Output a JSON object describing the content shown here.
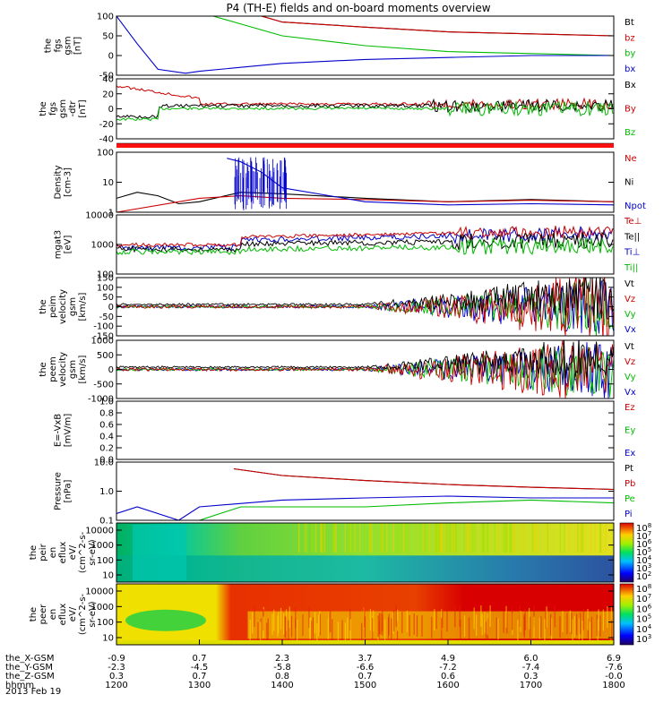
{
  "title": "P4 (TH-E) fields and on-board moments overview",
  "date": "2013 Feb 19",
  "panels": [
    {
      "id": "fgs_gsm",
      "ylabel": [
        "the",
        "fgs",
        "gsm",
        "[nT]"
      ],
      "yticks": [
        "100",
        "50",
        "0",
        "-50"
      ],
      "legend": [
        {
          "t": "Bt",
          "c": "#000000"
        },
        {
          "t": "bz",
          "c": "#cc0000"
        },
        {
          "t": "by",
          "c": "#00bb00"
        },
        {
          "t": "bx",
          "c": "#0000cc"
        }
      ]
    },
    {
      "id": "fgs_gsm_detrend",
      "ylabel": [
        "the",
        "fgs",
        "gsm",
        "-dtr",
        "[nT]"
      ],
      "yticks": [
        "40",
        "20",
        "0",
        "-20",
        "-40"
      ],
      "legend": [
        {
          "t": "Bx",
          "c": "#000000"
        },
        {
          "t": "By",
          "c": "#cc0000"
        },
        {
          "t": "Bz",
          "c": "#00bb00"
        }
      ]
    },
    {
      "id": "density",
      "ylabel": [
        "Density",
        "[cm-3]"
      ],
      "yticks": [
        "100",
        "10",
        "1"
      ],
      "legend": [
        {
          "t": "Ne",
          "c": "#cc0000"
        },
        {
          "t": "Ni",
          "c": "#000000"
        },
        {
          "t": "Npot",
          "c": "#0000cc"
        }
      ]
    },
    {
      "id": "temperature",
      "ylabel": [
        "mgat3",
        "[eV]"
      ],
      "yticks": [
        "10000",
        "1000",
        "100"
      ],
      "legend": [
        {
          "t": "Te⊥",
          "c": "#cc0000"
        },
        {
          "t": "Te||",
          "c": "#000000"
        },
        {
          "t": "Ti⊥",
          "c": "#0000cc"
        },
        {
          "t": "Ti||",
          "c": "#00bb00"
        }
      ]
    },
    {
      "id": "peim_velocity",
      "ylabel": [
        "the",
        "peim",
        "velocity",
        "gsm",
        "[km/s]"
      ],
      "yticks": [
        "150",
        "100",
        "50",
        "0",
        "-50",
        "-100",
        "-150"
      ],
      "legend": [
        {
          "t": "Vt",
          "c": "#000000"
        },
        {
          "t": "Vz",
          "c": "#cc0000"
        },
        {
          "t": "Vy",
          "c": "#00bb00"
        },
        {
          "t": "Vx",
          "c": "#0000cc"
        }
      ]
    },
    {
      "id": "peem_velocity",
      "ylabel": [
        "the",
        "peem",
        "velocity",
        "gsm",
        "[km/s]"
      ],
      "yticks": [
        "1000",
        "500",
        "0",
        "-500",
        "-1000"
      ],
      "legend": [
        {
          "t": "Vt",
          "c": "#000000"
        },
        {
          "t": "Vz",
          "c": "#cc0000"
        },
        {
          "t": "Vy",
          "c": "#00bb00"
        },
        {
          "t": "Vx",
          "c": "#0000cc"
        }
      ]
    },
    {
      "id": "efield",
      "ylabel": [
        "E=-VxB",
        "[mV/m]"
      ],
      "yticks": [
        "1.0",
        "0.8",
        "0.6",
        "0.4",
        "0.2",
        "0.0"
      ],
      "legend": [
        {
          "t": "Ez",
          "c": "#cc0000"
        },
        {
          "t": "Ey",
          "c": "#00bb00"
        },
        {
          "t": "Ex",
          "c": "#0000cc"
        }
      ]
    },
    {
      "id": "pressure",
      "ylabel": [
        "Pressure",
        "[nPa]"
      ],
      "yticks": [
        "10.0",
        "1.0",
        "0.1"
      ],
      "legend": [
        {
          "t": "Pt",
          "c": "#000000"
        },
        {
          "t": "Pb",
          "c": "#cc0000"
        },
        {
          "t": "Pe",
          "c": "#00bb00"
        },
        {
          "t": "Pi",
          "c": "#0000cc"
        }
      ]
    },
    {
      "id": "peir_eflux",
      "ylabel": [
        "the",
        "peir",
        "en",
        "eflux",
        "eV/",
        "(cm^2-s-",
        "sr-eV)"
      ],
      "yticks": [
        "10000",
        "1000",
        "100",
        "10"
      ],
      "colorbar": [
        "10^8",
        "10^7",
        "10^6",
        "10^5",
        "10^4",
        "10^3",
        "10^2"
      ]
    },
    {
      "id": "peer_eflux",
      "ylabel": [
        "the",
        "peer",
        "en",
        "eflux",
        "eV/",
        "(cm^2-s-",
        "sr-eV)"
      ],
      "yticks": [
        "10000",
        "1000",
        "100",
        "10"
      ],
      "colorbar": [
        "10^8",
        "10^7",
        "10^6",
        "10^5",
        "10^4",
        "10^3"
      ]
    }
  ],
  "xaxis": {
    "rows": [
      {
        "label": "the_X-GSM",
        "values": [
          "-0.9",
          "0.7",
          "2.3",
          "3.7",
          "4.9",
          "6.0",
          "6.9"
        ]
      },
      {
        "label": "the_Y-GSM",
        "values": [
          "-2.3",
          "-4.5",
          "-5.8",
          "-6.6",
          "-7.2",
          "-7.4",
          "-7.6"
        ]
      },
      {
        "label": "the_Z-GSM",
        "values": [
          "0.3",
          "0.7",
          "0.8",
          "0.7",
          "0.6",
          "0.3",
          "-0.0"
        ]
      },
      {
        "label": "hhmm",
        "values": [
          "1200",
          "1300",
          "1400",
          "1500",
          "1600",
          "1700",
          "1800"
        ]
      }
    ]
  },
  "chart_data": {
    "type": "line",
    "title": "P4 (TH-E) fields and on-board moments overview",
    "x_time": [
      "1200",
      "1300",
      "1400",
      "1500",
      "1600",
      "1700",
      "1800"
    ],
    "fgs_gsm": {
      "ylim": [
        -50,
        100
      ],
      "series": [
        {
          "name": "Bt",
          "x": [
            1345,
            1400,
            1500,
            1600,
            1700,
            1800
          ],
          "y": [
            100,
            85,
            72,
            60,
            55,
            50
          ]
        },
        {
          "name": "bz",
          "x": [
            1345,
            1400,
            1500,
            1600,
            1700,
            1800
          ],
          "y": [
            100,
            85,
            72,
            60,
            55,
            50
          ]
        },
        {
          "name": "by",
          "x": [
            1310,
            1400,
            1500,
            1600,
            1700,
            1800
          ],
          "y": [
            100,
            50,
            25,
            10,
            5,
            0
          ]
        },
        {
          "name": "bx",
          "x": [
            1200,
            1215,
            1230,
            1250,
            1300,
            1400,
            1500,
            1600,
            1700,
            1800
          ],
          "y": [
            100,
            30,
            -35,
            -45,
            -40,
            -20,
            -10,
            -5,
            0,
            0
          ]
        }
      ]
    },
    "density": {
      "ylim": [
        0.3,
        300
      ],
      "log": true,
      "series": [
        {
          "name": "Ni",
          "x": [
            1200,
            1215,
            1230,
            1245,
            1300,
            1330,
            1400,
            1500,
            1600,
            1700,
            1800
          ],
          "y": [
            1.5,
            3,
            2,
            0.8,
            1,
            3,
            2.5,
            1.5,
            1.0,
            1.3,
            1.0
          ]
        },
        {
          "name": "Ne",
          "x": [
            1200,
            1300,
            1330,
            1400,
            1500,
            1600,
            1700,
            1800
          ],
          "y": [
            0.3,
            1.5,
            2,
            1.5,
            1.3,
            1.0,
            1.2,
            1.0
          ]
        },
        {
          "name": "Npot",
          "x": [
            1320,
            1330,
            1345,
            1400,
            1500,
            1600,
            1700,
            1800
          ],
          "y": [
            150,
            100,
            30,
            5,
            1,
            0.7,
            0.8,
            0.7
          ]
        }
      ]
    },
    "pressure": {
      "ylim": [
        0.05,
        20
      ],
      "log": true,
      "series": [
        {
          "name": "Pt",
          "x": [
            1325,
            1400,
            1500,
            1600,
            1700,
            1800
          ],
          "y": [
            10,
            5,
            3,
            2,
            1.5,
            1.2
          ]
        },
        {
          "name": "Pb",
          "x": [
            1325,
            1400,
            1500,
            1600,
            1700,
            1800
          ],
          "y": [
            10,
            5,
            3,
            2,
            1.5,
            1.2
          ]
        },
        {
          "name": "Pe",
          "x": [
            1300,
            1330,
            1400,
            1500,
            1600,
            1700,
            1800
          ],
          "y": [
            0.05,
            0.2,
            0.2,
            0.2,
            0.3,
            0.4,
            0.3
          ]
        },
        {
          "name": "Pi",
          "x": [
            1200,
            1215,
            1245,
            1300,
            1400,
            1500,
            1600,
            1700,
            1800
          ],
          "y": [
            0.1,
            0.2,
            0.05,
            0.2,
            0.4,
            0.5,
            0.6,
            0.5,
            0.5
          ]
        }
      ]
    }
  }
}
